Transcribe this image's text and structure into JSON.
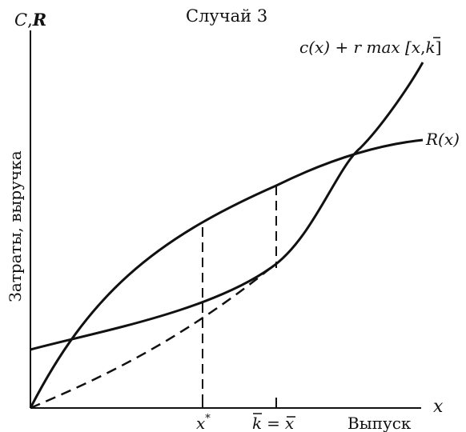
{
  "diagram": {
    "title": "Случай 3",
    "y_axis": {
      "symbol_c": "C",
      "comma": ",",
      "symbol_r": "R",
      "label": "Затраты, выручка"
    },
    "x_axis": {
      "symbol": "x",
      "label": "Выпуск"
    },
    "curves": {
      "cost_curve": {
        "part1": "c(x) + r max [",
        "x": "x",
        "comma": ",",
        "k": "k",
        "close": "]"
      },
      "revenue_curve": "R(x)"
    },
    "ticks": {
      "x_star_base": "x",
      "x_star_sup": "*",
      "k_bar": "k",
      "equals": "=",
      "x_bar": "x"
    },
    "colors": {
      "ink": "#111111",
      "background": "#ffffff"
    }
  }
}
